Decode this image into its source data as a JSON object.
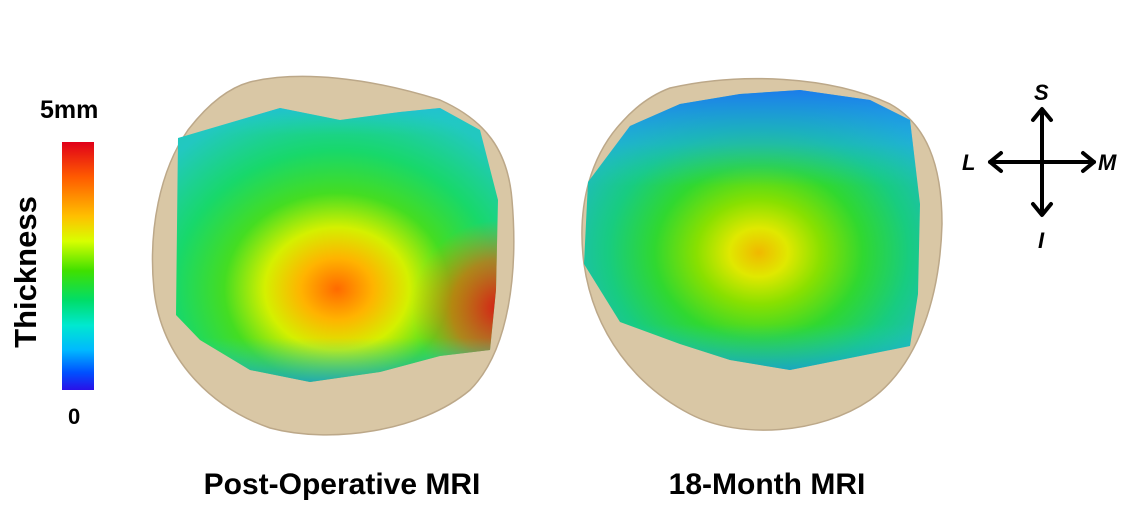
{
  "colorbar": {
    "title": "Thickness",
    "max_label": "5mm",
    "min_label": "0"
  },
  "panels": [
    {
      "caption": "Post-Operative MRI"
    },
    {
      "caption": "18-Month MRI"
    }
  ],
  "compass": {
    "superior": "S",
    "inferior": "I",
    "lateral": "L",
    "medial": "M"
  },
  "colors": {
    "bone": "#d9c7a5",
    "high": "#e0001a",
    "mid": "#3fe000",
    "low": "#2a10e8"
  }
}
